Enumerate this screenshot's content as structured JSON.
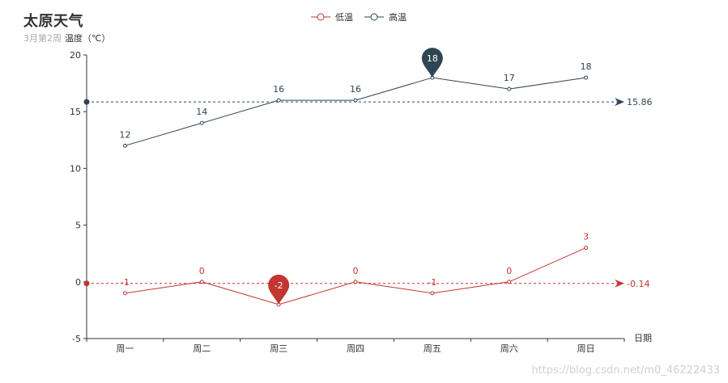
{
  "chart_data": {
    "type": "line",
    "title": "太原天气",
    "subtitle": "3月第2周",
    "ylabel": "温度（℃）",
    "xlabel": "日期",
    "categories": [
      "周一",
      "周二",
      "周三",
      "周四",
      "周五",
      "周六",
      "周日"
    ],
    "series": [
      {
        "name": "低温",
        "values": [
          -1,
          0,
          -2,
          0,
          -1,
          0,
          3
        ],
        "color": "#c23531",
        "min_marker": -2,
        "average": -0.14
      },
      {
        "name": "高温",
        "values": [
          12,
          14,
          16,
          16,
          18,
          17,
          18
        ],
        "color": "#2f4554",
        "max_marker": 18,
        "average": 15.86
      }
    ],
    "ylim": [
      -5,
      20
    ],
    "yticks": [
      -5,
      0,
      5,
      10,
      15,
      20
    ],
    "legend_position": "top",
    "grid": false
  },
  "watermark": "https://blog.csdn.net/m0_46222433"
}
